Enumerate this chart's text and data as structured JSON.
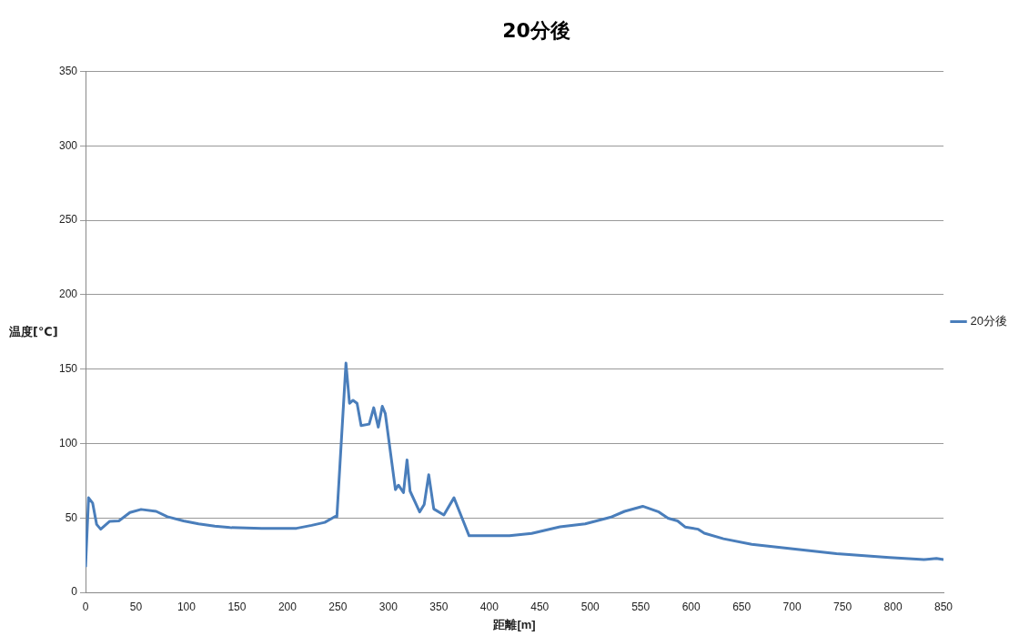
{
  "chart_data": {
    "type": "line",
    "title": "20分後",
    "xlabel": "距離[m]",
    "ylabel": "温度[℃]",
    "xlim": [
      0,
      850
    ],
    "xticks": [
      0,
      50,
      100,
      150,
      200,
      250,
      300,
      350,
      400,
      450,
      500,
      550,
      600,
      650,
      700,
      750,
      800,
      850
    ],
    "ylim": [
      0,
      350
    ],
    "yticks": [
      0,
      50,
      100,
      150,
      200,
      250,
      300,
      350
    ],
    "grid": "y",
    "legend": "right",
    "marker": "none",
    "line_style": "solid",
    "series": [
      {
        "name": "20分後",
        "color": "#4a7ebb",
        "x": [
          0,
          3,
          7,
          11,
          15,
          24,
          33,
          44,
          55,
          70,
          81,
          97,
          112,
          128,
          143,
          174.5,
          209,
          224,
          237,
          247.5,
          249,
          258,
          261.5,
          265,
          269,
          273,
          281,
          285.5,
          290,
          294,
          297,
          307,
          310,
          315,
          318.5,
          321.5,
          331,
          335.5,
          340,
          345,
          355,
          365,
          380,
          420,
          442,
          470,
          495,
          520,
          534,
          552,
          568,
          577,
          586.5,
          594,
          607,
          613,
          632,
          660,
          703,
          744,
          796.5,
          830.7,
          843,
          850
        ],
        "values": [
          17,
          63.5,
          60,
          45.6,
          42.4,
          47.7,
          48,
          53.6,
          55.7,
          54.4,
          50.8,
          48,
          46,
          44.5,
          43.5,
          43,
          43,
          45,
          47,
          51,
          50.8,
          154,
          127,
          129,
          127,
          112,
          113,
          124,
          111,
          125,
          120,
          69,
          72,
          67,
          89,
          68,
          54,
          59,
          79,
          56,
          52,
          63.5,
          38,
          38,
          39.6,
          44,
          46,
          50.4,
          54.4,
          57.8,
          54,
          49.8,
          48,
          43.9,
          42.4,
          39.7,
          36,
          32.3,
          29,
          26,
          23.4,
          22,
          22.8,
          22
        ]
      }
    ]
  }
}
